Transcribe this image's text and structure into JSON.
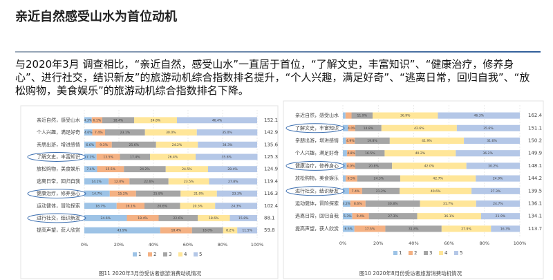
{
  "title": "亲近自然感受山水为首位动机",
  "paragraph": "与2020年3月 调查相比，“亲近自然，感受山水”一直居于首位，“了解文史，丰富知识”、“健康治疗，修养身心”、进行社交，结识新友”的旅游动机综合指数排名提升，“个人兴趣，满足好奇”、“逃离日常，回归自我”、“放松购物，美食娱乐”的旅游动机综合指数排名下降。",
  "chart_data": [
    {
      "type": "bar",
      "orientation": "horizontal",
      "stacked": true,
      "caption": "图11 2020年3月份受访者旅游消费动机情况",
      "categories": [
        "亲近自然，感受山水",
        "个人兴趣，满足好奇",
        "亲朋出游，增进感情",
        "了解文史，丰富知识",
        "放松购物，美食娱乐",
        "逃离日常，回归自我",
        "健康治疗，修养身心",
        "运动健体，冒险探索",
        "进行社交，结识新友",
        "提高声望，获人欣赏"
      ],
      "index": [
        "152.1",
        "142.9",
        "135.6",
        "125.3",
        "124.9",
        "119.4",
        "116.3",
        "102.4",
        "88.1",
        "59.8"
      ],
      "highlight": [
        3,
        6,
        8
      ],
      "xlim": [
        0,
        100
      ],
      "xticks": [
        {
          "value": 0,
          "label": "0%"
        },
        {
          "value": 20,
          "label": "20%"
        },
        {
          "value": 40,
          "label": "40%"
        },
        {
          "value": 60,
          "label": "60%"
        },
        {
          "value": 80,
          "label": "80%"
        },
        {
          "value": 100,
          "label": "100%"
        }
      ],
      "grid": true,
      "series": [
        {
          "name": "1",
          "color": "#9dc3e6",
          "values": [
            4.3,
            4.6,
            6.6,
            7.1,
            7.4,
            14.1,
            14.7,
            18.7,
            24.6,
            43.9
          ],
          "value_labels": [
            "4.3%",
            "4.6%",
            "6.6%",
            "7.1%",
            "7.4%",
            "14.1%",
            "14.7%",
            "18.7%",
            "24.6%",
            "43.9%"
          ]
        },
        {
          "name": "2",
          "color": "#f4b183",
          "values": [
            6.1,
            7.4,
            9.3,
            13.5,
            15.5,
            12.0,
            15.2,
            16.1,
            18.4,
            18.4
          ],
          "value_labels": [
            "6.1%",
            "7.4%",
            "9.3%",
            "13.5%",
            "15.5%",
            "12.0%",
            "15.2%",
            "16.1%",
            "18.4%",
            "18.4%"
          ]
        },
        {
          "name": "3",
          "color": "#a5a5a5",
          "values": [
            18.4,
            23.1,
            25.6,
            17.4,
            24.2,
            22.6,
            25.8,
            20.6,
            22.6,
            18.0
          ],
          "value_labels": [
            "18.4%",
            "23.1%",
            "25.6%",
            "17.4%",
            "24.2%",
            "22.6%",
            "25.8%",
            "20.6%",
            "22.6%",
            "18.0%"
          ]
        },
        {
          "name": "4",
          "color": "#ffe699",
          "values": [
            24.8,
            30.0,
            24.2,
            26.4,
            24.5,
            23.5,
            21.0,
            20.3,
            18.6,
            8.2
          ],
          "value_labels": [
            "24.8%",
            "30.0%",
            "24.2%",
            "26.4%",
            "24.5%",
            "23.5%",
            "21.0%",
            "20.3%",
            "18.6%",
            "8.2%"
          ]
        },
        {
          "name": "5",
          "color": "#b4c7e7",
          "values": [
            46.4,
            35.0,
            34.3,
            35.8,
            28.4,
            27.8,
            23.3,
            24.3,
            15.8,
            11.5
          ],
          "value_labels": [
            "46.4%",
            "35.0%",
            "34.3%",
            "35.8%",
            "28.4%",
            "27.8%",
            "23.3%",
            "24.3%",
            "15.8%",
            "11.5%"
          ]
        }
      ]
    },
    {
      "type": "bar",
      "orientation": "horizontal",
      "stacked": true,
      "caption": "图10 2020年8月份受访者旅游消费动机情况",
      "categories": [
        "亲近自然，感受山水",
        "了解文史，丰富知识",
        "亲朋出游，增进感情",
        "个人兴趣，满足好奇",
        "健康治疗，修养身心",
        "放松购物，美食娱乐",
        "进行社交，结识新友",
        "运动健体，冒险探索",
        "逃离日常，回归自我",
        "提高声望，获人欣赏"
      ],
      "index": [
        "162.4",
        "151.1",
        "150.2",
        "149.9",
        "148.1",
        "144.2",
        "139.5",
        "136.1",
        "134.1",
        "113.7"
      ],
      "highlight": [
        1,
        4,
        6
      ],
      "xlim": [
        0,
        100
      ],
      "xticks": [
        {
          "value": 0,
          "label": "0%"
        },
        {
          "value": 20,
          "label": "20%"
        },
        {
          "value": 40,
          "label": "40%"
        },
        {
          "value": 60,
          "label": "60%"
        },
        {
          "value": 80,
          "label": "80%"
        },
        {
          "value": 100,
          "label": "100%"
        }
      ],
      "grid": true,
      "series": [
        {
          "name": "1",
          "color": "#9dc3e6",
          "values": [
            1.5,
            3.0,
            1.8,
            2.3,
            2.1,
            1.6,
            3.5,
            4.2,
            5.3,
            6.5
          ],
          "value_labels": [
            "1.5%",
            "3.0%",
            "1.8%",
            "2.3%",
            "2.1%",
            "1.6%",
            "3.5%",
            "4.2%",
            "5.3%",
            "6.5%"
          ]
        },
        {
          "name": "2",
          "color": "#f4b183",
          "values": [
            3.4,
            4.0,
            4.9,
            4.8,
            4.9,
            6.5,
            7.4,
            8.6,
            9.4,
            17.5
          ],
          "value_labels": [
            "3.4%",
            "4.0%",
            "4.9%",
            "4.8%",
            "4.9%",
            "6.5%",
            "7.4%",
            "8.6%",
            "9.4%",
            "17.5%"
          ]
        },
        {
          "name": "3",
          "color": "#a5a5a5",
          "values": [
            11.9,
            14.8,
            19.8,
            16.5,
            20.8,
            24.3,
            21.2,
            30.8,
            27.3,
            31.8
          ],
          "value_labels": [
            "11.9%",
            "14.8%",
            "19.8%",
            "16.5%",
            "20.8%",
            "24.3%",
            "21.2%",
            "30.8%",
            "27.3%",
            "31.8%"
          ]
        },
        {
          "name": "4",
          "color": "#ffe699",
          "values": [
            36.9,
            42.6,
            41.9,
            40.2,
            42.0,
            42.7,
            40.6,
            31.7,
            36.1,
            27.9
          ],
          "value_labels": [
            "36.9%",
            "42.6%",
            "41.9%",
            "40.2%",
            "42.0%",
            "42.7%",
            "40.6%",
            "31.7%",
            "36.1%",
            "27.9%"
          ]
        },
        {
          "name": "5",
          "color": "#b4c7e7",
          "values": [
            46.3,
            35.6,
            31.6,
            36.2,
            30.2,
            24.9,
            27.3,
            24.7,
            21.9,
            16.3
          ],
          "value_labels": [
            "46.3%",
            "35.6%",
            "31.6%",
            "36.2%",
            "30.2%",
            "24.9%",
            "27.3%",
            "24.7%",
            "21.9%",
            "16.3%"
          ]
        }
      ]
    }
  ]
}
